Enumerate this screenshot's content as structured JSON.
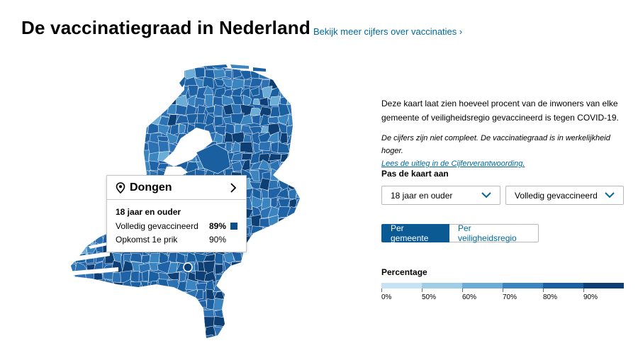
{
  "header": {
    "title": "De vaccinatiegraad in Nederland",
    "more_link": "Bekijk meer cijfers over vaccinaties"
  },
  "tooltip": {
    "municipality": "Dongen",
    "group": "18 jaar en ouder",
    "rows": [
      {
        "label": "Volledig gevaccineerd",
        "value": "89%"
      },
      {
        "label": "Opkomst 1e prik",
        "value": "90%"
      }
    ]
  },
  "info": {
    "description": "Deze kaart laat zien hoeveel procent van de inwoners van elke gemeente of veiligheidsregio gevaccineerd is tegen COVID-19.",
    "note": "De cijfers zijn niet compleet. De vaccinatiegraad is in werkelijkheid hoger.",
    "note_link": "Lees de uitleg in de Cijferverantwoording."
  },
  "controls": {
    "label": "Pas de kaart aan",
    "age_select": "18 jaar en ouder",
    "status_select": "Volledig gevaccineerd",
    "tabs": [
      {
        "label": "Per gemeente",
        "active": true
      },
      {
        "label": "Per veiligheidsregio",
        "active": false
      }
    ]
  },
  "legend": {
    "title": "Percentage",
    "colors": [
      "#c6e2f3",
      "#9ecde8",
      "#6badd6",
      "#3a84c0",
      "#1a5fa0",
      "#0d3f75"
    ],
    "labels": [
      "0%",
      "50%",
      "60%",
      "70%",
      "80%",
      "90%"
    ]
  },
  "map": {
    "highlighted_municipality": "Dongen",
    "palette": [
      "#6badd6",
      "#3a84c0",
      "#2c71b2",
      "#1f62a6",
      "#1a5fa0",
      "#0d3f75"
    ]
  }
}
